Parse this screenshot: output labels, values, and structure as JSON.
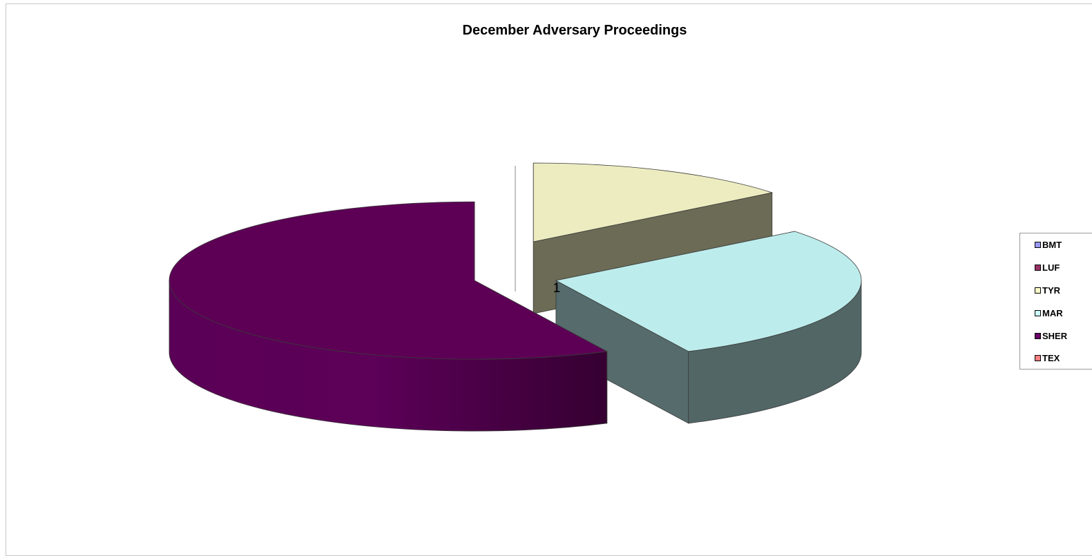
{
  "chart_data": {
    "type": "pie",
    "style": "3d-exploded",
    "title": "December Adversary Proceedings",
    "slices": [
      {
        "name": "BMT",
        "value": 0,
        "color": "#9999ff"
      },
      {
        "name": "LUF",
        "value": 0,
        "color": "#993366"
      },
      {
        "name": "TYR",
        "value": 1,
        "color": "#ffffcc",
        "label": "1"
      },
      {
        "name": "MAR",
        "value": 2,
        "color": "#ccffff"
      },
      {
        "name": "SHER",
        "value": 4,
        "color": "#660066"
      },
      {
        "name": "TEX",
        "value": 0,
        "color": "#ff8080"
      }
    ],
    "legend": {
      "position": "right"
    }
  }
}
